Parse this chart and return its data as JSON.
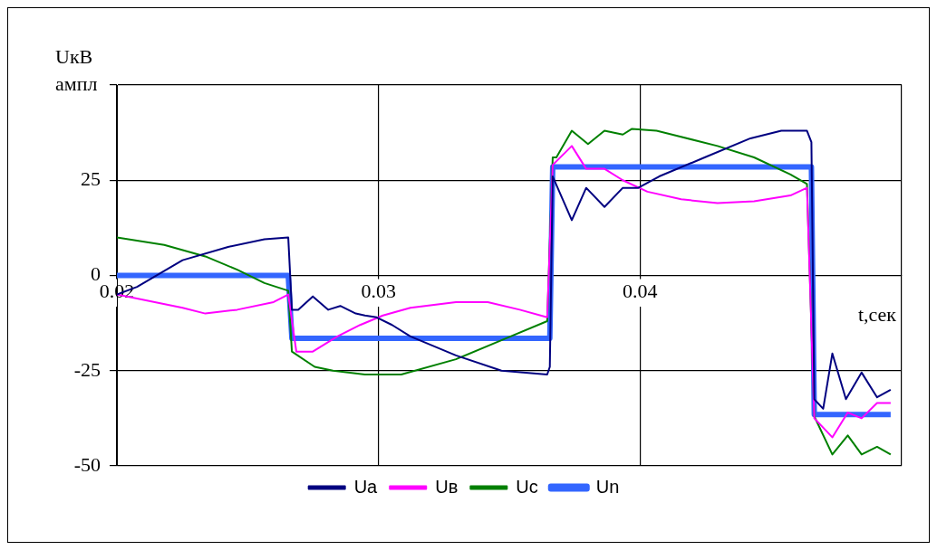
{
  "chart_data": {
    "type": "line",
    "xlabel": "t,сек",
    "ylabel": "UкВ ампл",
    "xlim": [
      0.02,
      0.05
    ],
    "ylim": [
      -50,
      50
    ],
    "xticks": [
      0.02,
      0.03,
      0.04,
      {
        "value": 0.05,
        "label": null
      }
    ],
    "yticks": [
      -50,
      -25,
      0,
      25,
      {
        "value": 50,
        "label": null
      }
    ],
    "grid": true,
    "legend": "bottom",
    "marker": "none",
    "line_style": "solid",
    "series": [
      {
        "name": "Ua",
        "color": "#000080",
        "x": [
          0.02,
          0.02077,
          0.02251,
          0.02425,
          0.02564,
          0.02655,
          0.02669,
          0.02693,
          0.02749,
          0.02808,
          0.02854,
          0.02913,
          0.02948,
          0.02993,
          0.03052,
          0.03122,
          0.03296,
          0.0347,
          0.03645,
          0.03655,
          0.03666,
          0.03739,
          0.03794,
          0.03864,
          0.03934,
          0.03993,
          0.04073,
          0.04247,
          0.04422,
          0.0454,
          0.04638,
          0.04655,
          0.04666,
          0.047,
          0.04735,
          0.04787,
          0.04847,
          0.04906,
          0.04958
        ],
        "values": [
          -5,
          -3,
          4,
          7.5,
          9.5,
          10,
          -9,
          -9,
          -5.5,
          -9,
          -8,
          -10,
          -10.5,
          -11,
          -13,
          -16,
          -21,
          -25,
          -26,
          -24,
          26,
          14.5,
          23,
          18,
          23,
          23,
          26,
          31,
          36,
          38,
          38,
          35,
          -32.5,
          -35,
          -20.5,
          -32.5,
          -25.5,
          -32,
          -30
        ]
      },
      {
        "name": "Uв",
        "color": "#ff00ff",
        "x": [
          0.02,
          0.02251,
          0.02338,
          0.0246,
          0.02599,
          0.02655,
          0.02686,
          0.02749,
          0.02843,
          0.0293,
          0.03017,
          0.03122,
          0.03296,
          0.03418,
          0.0354,
          0.03645,
          0.03666,
          0.03739,
          0.03794,
          0.03864,
          0.03934,
          0.04028,
          0.04157,
          0.04296,
          0.04436,
          0.04575,
          0.04638,
          0.04666,
          0.04735,
          0.04794,
          0.04847,
          0.04906,
          0.04958
        ],
        "values": [
          -5,
          -8.5,
          -10,
          -9,
          -7,
          -5,
          -20,
          -20,
          -16,
          -13,
          -10.5,
          -8.5,
          -7,
          -7,
          -9,
          -11,
          29,
          34,
          28,
          28,
          25,
          22,
          20,
          19,
          19.5,
          21,
          23,
          -37.5,
          -42.5,
          -36,
          -37.5,
          -33.5,
          -33.5
        ]
      },
      {
        "name": "Uc",
        "color": "#008000",
        "x": [
          0.02,
          0.02181,
          0.02338,
          0.0246,
          0.02564,
          0.02655,
          0.02669,
          0.02756,
          0.02826,
          0.02948,
          0.03,
          0.03087,
          0.03296,
          0.0347,
          0.03645,
          0.03666,
          0.0368,
          0.03739,
          0.03801,
          0.03864,
          0.03934,
          0.03969,
          0.04063,
          0.04122,
          0.04296,
          0.04436,
          0.04575,
          0.04638,
          0.04666,
          0.04735,
          0.04794,
          0.04847,
          0.04906,
          0.04958
        ],
        "values": [
          10,
          8,
          5,
          1.5,
          -2,
          -4,
          -20,
          -24,
          -25,
          -26,
          -26,
          -26,
          -22,
          -17,
          -12,
          31,
          31,
          38,
          34.5,
          38,
          37,
          38.5,
          38,
          37,
          34,
          31,
          26.5,
          24,
          -37,
          -47,
          -42,
          -47,
          -45,
          -47
        ]
      },
      {
        "name": "Un",
        "color": "#3366ff",
        "x": [
          0.02,
          0.02655,
          0.02669,
          0.03655,
          0.03666,
          0.04655,
          0.04666,
          0.04958
        ],
        "values": [
          0,
          0,
          -16.5,
          -16.5,
          28.5,
          28.5,
          -36.5,
          -36.5
        ]
      }
    ]
  }
}
